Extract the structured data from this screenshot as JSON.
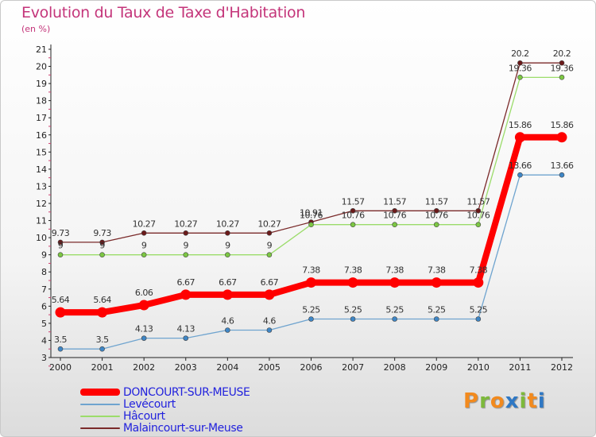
{
  "title": "Evolution du Taux de Taxe d'Habitation",
  "subtitle": "(en %)",
  "logo": {
    "text": "Proxiti",
    "letter_colors": [
      "#f28a1e",
      "#7db93b",
      "#f28a1e",
      "#2f78c4",
      "#7db93b",
      "#f28a1e",
      "#2f78c4"
    ]
  },
  "chart_data": {
    "type": "line",
    "title": "Evolution du Taux de Taxe d'Habitation",
    "ylabel": "(en %)",
    "x": [
      "2000",
      "2001",
      "2002",
      "2003",
      "2004",
      "2005",
      "2006",
      "2007",
      "2008",
      "2009",
      "2010",
      "2011",
      "2012"
    ],
    "ylim": [
      3,
      21
    ],
    "yticks": [
      3,
      4,
      5,
      6,
      7,
      8,
      9,
      10,
      11,
      12,
      13,
      14,
      15,
      16,
      17,
      18,
      19,
      20,
      21
    ],
    "grid": false,
    "legend_position": "bottom-left",
    "step": true,
    "series": [
      {
        "name": "Malaincourt-sur-Meuse",
        "color": "#7a2a2a",
        "dot_color": "#6b1a1a",
        "values": [
          9.73,
          9.73,
          10.27,
          10.27,
          10.27,
          10.27,
          10.91,
          11.57,
          11.57,
          11.57,
          11.57,
          20.2,
          20.2
        ],
        "labels": [
          "9.73",
          "9.73",
          "10.27",
          "10.27",
          "10.27",
          "10.27",
          "10.91",
          "11.57",
          "11.57",
          "11.57",
          "11.57",
          "20.2",
          "20.2"
        ]
      },
      {
        "name": "Hâcourt",
        "color": "#9bdc6a",
        "dot_color": "#7cc743",
        "values": [
          9,
          9,
          9,
          9,
          9,
          9,
          10.76,
          10.76,
          10.76,
          10.76,
          10.76,
          19.36,
          19.36
        ],
        "labels": [
          "9",
          "9",
          "9",
          "9",
          "9",
          "9",
          "10.76",
          "10.76",
          "10.76",
          "10.76",
          "10.76",
          "19.36",
          "19.36"
        ]
      },
      {
        "name": "Levécourt",
        "color": "#6fa4cf",
        "dot_color": "#3e86c6",
        "values": [
          3.5,
          3.5,
          4.13,
          4.13,
          4.6,
          4.6,
          5.25,
          5.25,
          5.25,
          5.25,
          5.25,
          13.66,
          13.66
        ],
        "labels": [
          "3.5",
          "3.5",
          "4.13",
          "4.13",
          "4.6",
          "4.6",
          "5.25",
          "5.25",
          "5.25",
          "5.25",
          "5.25",
          "13.66",
          "13.66"
        ]
      },
      {
        "name": "DONCOURT-SUR-MEUSE",
        "color": "#ff0000",
        "dot_color": "#ff0000",
        "values": [
          5.64,
          5.64,
          6.06,
          6.67,
          6.67,
          6.67,
          7.38,
          7.38,
          7.38,
          7.38,
          7.38,
          15.86,
          15.86
        ],
        "labels": [
          "5.64",
          "5.64",
          "6.06",
          "6.67",
          "6.67",
          "6.67",
          "7.38",
          "7.38",
          "7.38",
          "7.38",
          "7.38",
          "15.86",
          "15.86"
        ]
      }
    ],
    "legend": [
      {
        "name": "DONCOURT-SUR-MEUSE",
        "color": "#ff0000",
        "text_color": "#2222dd"
      },
      {
        "name": "Levécourt",
        "color": "#6fa4cf",
        "text_color": "#2222dd"
      },
      {
        "name": "Hâcourt",
        "color": "#9bdc6a",
        "text_color": "#2222dd"
      },
      {
        "name": "Malaincourt-sur-Meuse",
        "color": "#7a2a2a",
        "text_color": "#2222dd"
      }
    ]
  }
}
